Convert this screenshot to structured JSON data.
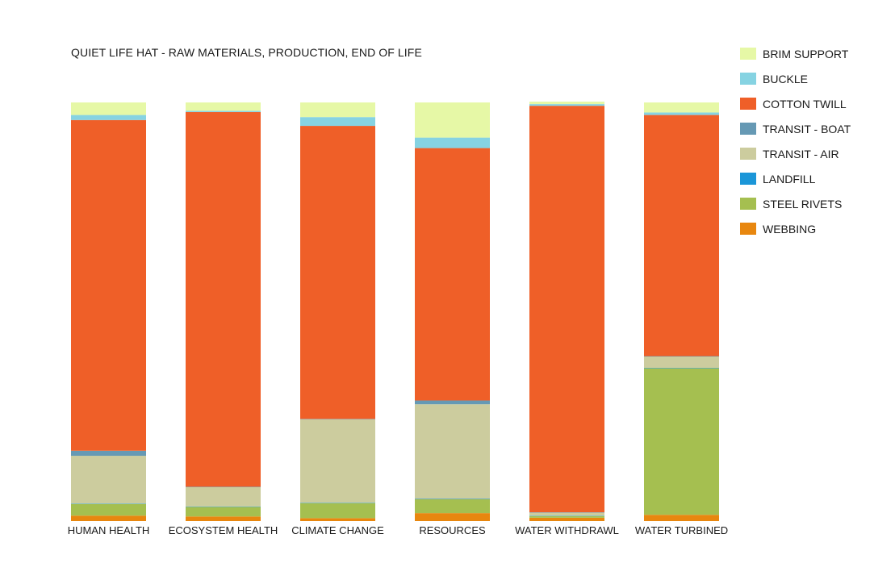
{
  "chart_data": {
    "type": "bar",
    "stacked": true,
    "normalized": true,
    "title": "QUIET LIFE HAT - RAW MATERIALS, PRODUCTION, END OF LIFE",
    "categories": [
      "HUMAN HEALTH",
      "ECOSYSTEM HEALTH",
      "CLIMATE CHANGE",
      "RESOURCES",
      "WATER WITHDRAWL",
      "WATER TURBINED"
    ],
    "ylim": [
      0,
      100
    ],
    "grid": false,
    "legend_position": "right",
    "series": [
      {
        "name": "WEBBING",
        "color": "#e8870f",
        "values": [
          1.3,
          1.1,
          0.7,
          1.9,
          0.8,
          1.5
        ]
      },
      {
        "name": "STEEL RIVETS",
        "color": "#a5bf50",
        "values": [
          2.8,
          2.3,
          3.6,
          3.3,
          0.4,
          35.0
        ]
      },
      {
        "name": "LANDFILL",
        "color": "#1b96d8",
        "values": [
          0.1,
          0.1,
          0.1,
          0.1,
          0.1,
          0.1
        ]
      },
      {
        "name": "TRANSIT - AIR",
        "color": "#cccc9e",
        "values": [
          11.4,
          4.6,
          19.9,
          22.6,
          0.7,
          2.7
        ]
      },
      {
        "name": "TRANSIT - BOAT",
        "color": "#6699b4",
        "values": [
          1.2,
          0.1,
          0.1,
          0.9,
          0.1,
          0.1
        ]
      },
      {
        "name": "COTTON TWILL",
        "color": "#ef5f28",
        "values": [
          79.0,
          89.5,
          70.0,
          60.3,
          97.1,
          57.6
        ]
      },
      {
        "name": "BUCKLE",
        "color": "#86d3e2",
        "values": [
          1.2,
          0.3,
          2.1,
          2.5,
          0.4,
          0.6
        ]
      },
      {
        "name": "BRIM SUPPORT",
        "color": "#e6f8a6",
        "values": [
          3.0,
          2.0,
          3.5,
          8.4,
          0.6,
          2.4
        ]
      }
    ]
  },
  "legend_order": [
    "BRIM SUPPORT",
    "BUCKLE",
    "COTTON TWILL",
    "TRANSIT - BOAT",
    "TRANSIT - AIR",
    "LANDFILL",
    "STEEL RIVETS",
    "WEBBING"
  ]
}
